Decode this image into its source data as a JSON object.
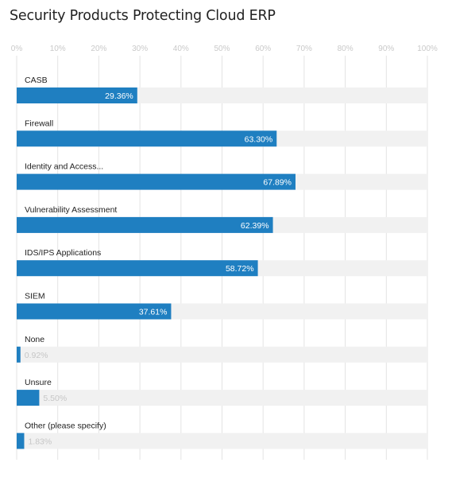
{
  "title": "Security Products Protecting Cloud ERP",
  "colors": {
    "bar": "#1f7fc1",
    "track": "#f1f1f1",
    "grid": "#e3e3e3"
  },
  "chart_data": {
    "type": "bar",
    "orientation": "horizontal",
    "title": "Security Products Protecting Cloud ERP",
    "xlabel": "",
    "ylabel": "",
    "xlim": [
      0,
      100
    ],
    "grid": true,
    "legend": "none",
    "ticks": [
      "0%",
      "10%",
      "20%",
      "30%",
      "40%",
      "50%",
      "60%",
      "70%",
      "80%",
      "90%",
      "100%"
    ],
    "categories": [
      "CASB",
      "Firewall",
      "Identity and Access...",
      "Vulnerability Assessment",
      "IDS/IPS Applications",
      "SIEM",
      "None",
      "Unsure",
      "Other (please specify)"
    ],
    "values": [
      29.36,
      63.3,
      67.89,
      62.39,
      58.72,
      37.61,
      0.92,
      5.5,
      1.83
    ],
    "value_labels": [
      "29.36%",
      "63.30%",
      "67.89%",
      "62.39%",
      "58.72%",
      "37.61%",
      "0.92%",
      "5.50%",
      "1.83%"
    ]
  }
}
